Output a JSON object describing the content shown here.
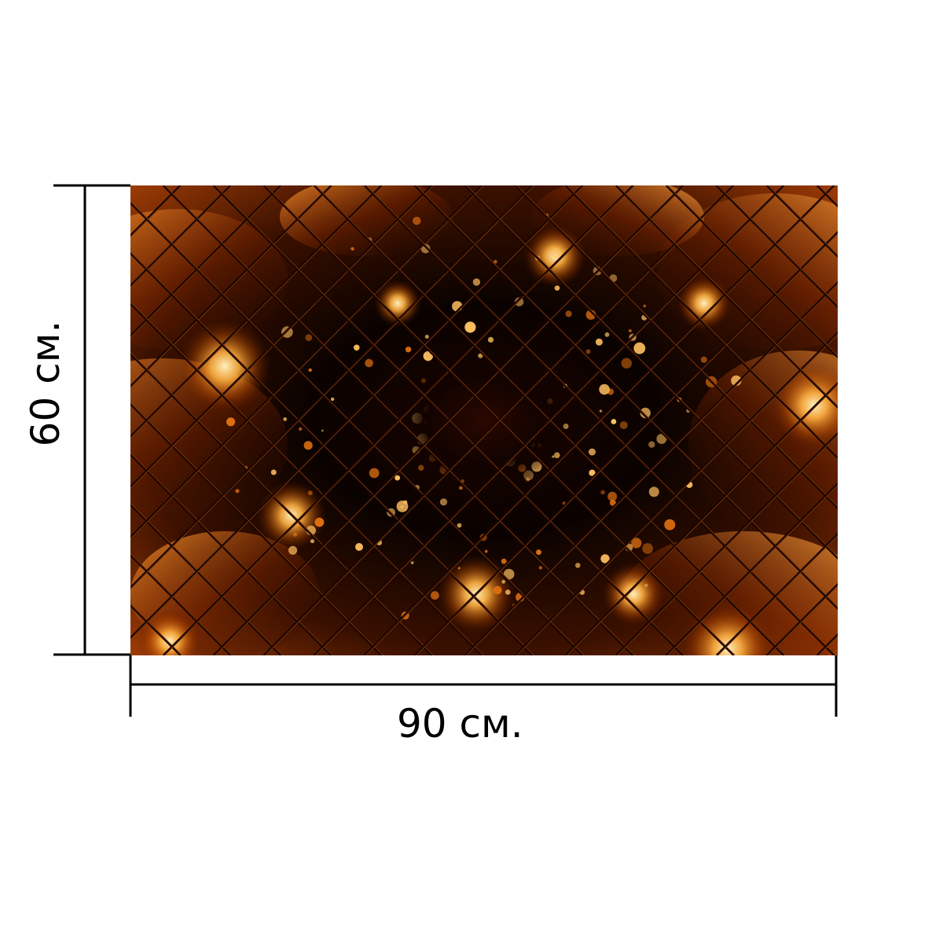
{
  "dimensions": {
    "width_label": "90 см.",
    "height_label": "60 см."
  },
  "artwork": {
    "subject": "abstract-fractal-diamond-tiles",
    "palette": {
      "dark": "#0a0200",
      "deep": "#2a0800",
      "mid": "#8a2e00",
      "glow": "#e07010",
      "hot": "#ffc060",
      "grid_line": "#1a0500"
    }
  },
  "lines": {
    "color": "#000000"
  }
}
